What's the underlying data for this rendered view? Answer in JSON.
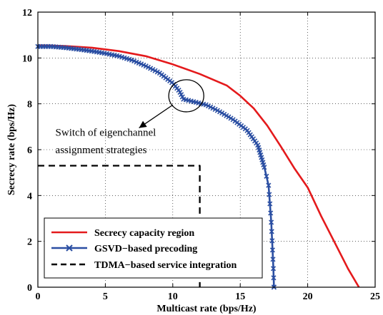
{
  "chart_data": {
    "type": "line",
    "title": "",
    "xlabel": "Multicast rate (bps/Hz)",
    "ylabel": "Secrecy rate (bps/Hz)",
    "xlim": [
      0,
      25
    ],
    "ylim": [
      0,
      12
    ],
    "xticks": [
      "0",
      "5",
      "10",
      "15",
      "20",
      "25"
    ],
    "yticks": [
      "0",
      "2",
      "4",
      "6",
      "8",
      "10",
      "12"
    ],
    "grid": true,
    "legend_position": "bottom-left",
    "series": [
      {
        "name": "Secrecy capacity region",
        "color": "#e41a1c",
        "style": "solid",
        "marker": "none",
        "x": [
          0,
          2,
          4,
          6,
          8,
          10,
          12,
          14,
          15,
          16,
          17,
          18,
          19,
          20,
          21,
          22,
          23,
          23.8
        ],
        "y": [
          10.55,
          10.52,
          10.45,
          10.3,
          10.08,
          9.72,
          9.3,
          8.8,
          8.35,
          7.8,
          7.05,
          6.15,
          5.2,
          4.35,
          3.1,
          1.95,
          0.8,
          0
        ]
      },
      {
        "name": "GSVD−based precoding",
        "color": "#2a4ea2",
        "style": "solid",
        "marker": "x",
        "x": [
          0,
          1,
          2,
          3,
          4,
          5,
          6,
          7,
          8,
          9,
          10,
          10.5,
          10.8,
          11.5,
          12.5,
          13.5,
          14.5,
          15.5,
          16.3,
          16.8,
          17.1,
          17.3,
          17.45,
          17.5
        ],
        "y": [
          10.5,
          10.5,
          10.45,
          10.38,
          10.3,
          10.2,
          10.08,
          9.9,
          9.65,
          9.35,
          8.9,
          8.55,
          8.2,
          8.1,
          7.95,
          7.65,
          7.3,
          6.85,
          6.2,
          5.2,
          4.45,
          2.85,
          0.9,
          0
        ]
      },
      {
        "name": "TDMA−based service integration",
        "color": "#000000",
        "style": "dashed",
        "marker": "none",
        "x": [
          0,
          12,
          12
        ],
        "y": [
          5.3,
          5.3,
          0
        ]
      }
    ],
    "annotations": [
      {
        "text": "Switch of eigenchannel",
        "x": 1.3,
        "y": 6.6
      },
      {
        "text": "assignment strategies",
        "x": 1.3,
        "y": 5.85
      }
    ],
    "annotation_ellipse": {
      "cx": 11,
      "cy": 8.35,
      "rx": 1.3,
      "ry": 0.7
    },
    "annotation_arrow": {
      "from": [
        10.0,
        7.95
      ],
      "to": [
        7.5,
        6.95
      ]
    }
  }
}
